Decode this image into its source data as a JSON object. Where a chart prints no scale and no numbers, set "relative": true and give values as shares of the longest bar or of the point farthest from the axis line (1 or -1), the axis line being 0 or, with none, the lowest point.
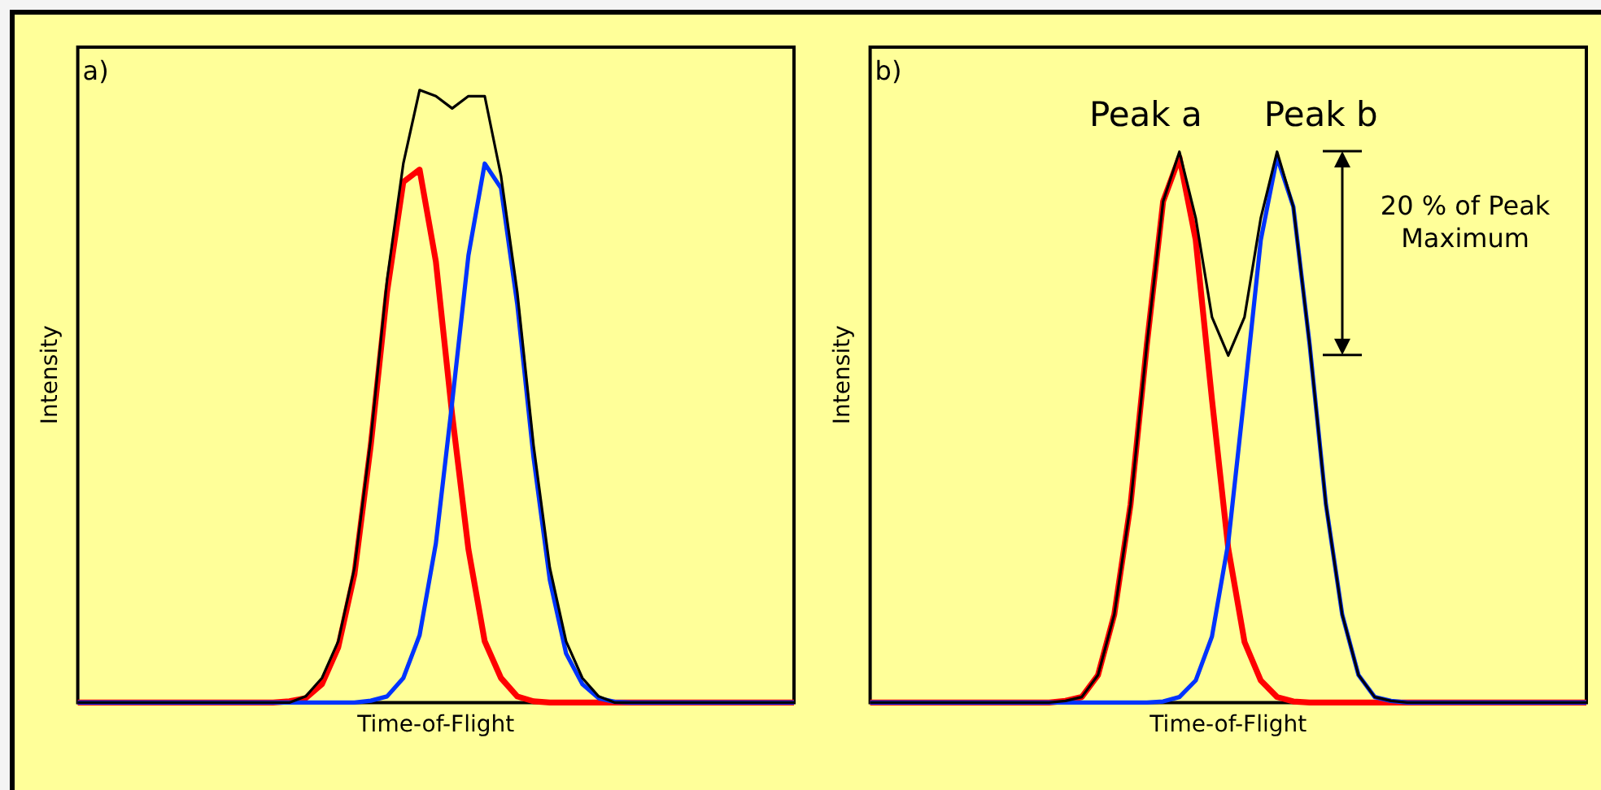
{
  "chart_data": [
    {
      "type": "line",
      "title": "a)",
      "xlabel": "Time-of-Flight",
      "ylabel": "Intensity",
      "relative": true,
      "categories": [
        null,
        null,
        null,
        null,
        null,
        null,
        null,
        null,
        null,
        null,
        null,
        null,
        null,
        null,
        null,
        null,
        null,
        null,
        null,
        null,
        null,
        null,
        null,
        null,
        null,
        null,
        null,
        null,
        null,
        null,
        null,
        null,
        null,
        null,
        null,
        null,
        null,
        null,
        null,
        null,
        null,
        null,
        null,
        null,
        null
      ],
      "series": [
        {
          "color": "#ff0000",
          "values": [
            0,
            0,
            0,
            0,
            0,
            0,
            0,
            0,
            0,
            0,
            0,
            0,
            0,
            0.002,
            0.007,
            0.03,
            0.09,
            0.21,
            0.42,
            0.67,
            0.85,
            0.87,
            0.72,
            0.47,
            0.25,
            0.1,
            0.04,
            0.01,
            0.002,
            0,
            0,
            0,
            0,
            0,
            0,
            0,
            0,
            0,
            0,
            0,
            0,
            0,
            0,
            0,
            0
          ]
        },
        {
          "color": "#0033ff",
          "values": [
            0,
            0,
            0,
            0,
            0,
            0,
            0,
            0,
            0,
            0,
            0,
            0,
            0,
            0,
            0,
            0,
            0,
            0,
            0.003,
            0.01,
            0.04,
            0.11,
            0.26,
            0.49,
            0.73,
            0.88,
            0.84,
            0.65,
            0.4,
            0.2,
            0.08,
            0.03,
            0.007,
            0.001,
            0,
            0,
            0,
            0,
            0,
            0,
            0,
            0,
            0,
            0,
            0
          ]
        },
        {
          "color": "#000000",
          "values": [
            0,
            0,
            0,
            0,
            0,
            0,
            0,
            0,
            0,
            0,
            0,
            0,
            0,
            0,
            0.01,
            0.04,
            0.1,
            0.22,
            0.43,
            0.69,
            0.88,
            1.0,
            0.99,
            0.97,
            0.99,
            0.99,
            0.86,
            0.67,
            0.42,
            0.22,
            0.1,
            0.04,
            0.01,
            0,
            0,
            0,
            0,
            0,
            0,
            0,
            0,
            0,
            0,
            0,
            0
          ]
        }
      ]
    },
    {
      "type": "line",
      "title": "b)",
      "xlabel": "Time-of-Flight",
      "ylabel": "Intensity",
      "relative": true,
      "categories": [
        null,
        null,
        null,
        null,
        null,
        null,
        null,
        null,
        null,
        null,
        null,
        null,
        null,
        null,
        null,
        null,
        null,
        null,
        null,
        null,
        null,
        null,
        null,
        null,
        null,
        null,
        null,
        null,
        null,
        null,
        null,
        null,
        null,
        null,
        null,
        null,
        null,
        null,
        null,
        null,
        null,
        null,
        null,
        null,
        null
      ],
      "annotations": [
        "Peak a",
        "Peak b",
        "20 % of Peak Maximum"
      ],
      "series": [
        {
          "color": "#ff0000",
          "values": [
            0,
            0,
            0,
            0,
            0,
            0,
            0,
            0,
            0,
            0,
            0,
            0,
            0.003,
            0.01,
            0.05,
            0.16,
            0.36,
            0.65,
            0.91,
            0.99,
            0.84,
            0.55,
            0.28,
            0.11,
            0.04,
            0.01,
            0.002,
            0,
            0,
            0,
            0,
            0,
            0,
            0,
            0,
            0,
            0,
            0,
            0,
            0,
            0,
            0,
            0,
            0,
            0
          ]
        },
        {
          "color": "#0033ff",
          "values": [
            0,
            0,
            0,
            0,
            0,
            0,
            0,
            0,
            0,
            0,
            0,
            0,
            0,
            0,
            0,
            0,
            0,
            0,
            0.002,
            0.01,
            0.04,
            0.12,
            0.29,
            0.56,
            0.84,
            0.99,
            0.9,
            0.65,
            0.36,
            0.16,
            0.05,
            0.01,
            0.003,
            0,
            0,
            0,
            0,
            0,
            0,
            0,
            0,
            0,
            0,
            0,
            0
          ]
        },
        {
          "color": "#000000",
          "values": [
            0,
            0,
            0,
            0,
            0,
            0,
            0,
            0,
            0,
            0,
            0,
            0,
            0.003,
            0.01,
            0.05,
            0.16,
            0.36,
            0.65,
            0.91,
            1.0,
            0.88,
            0.7,
            0.63,
            0.7,
            0.88,
            1.0,
            0.9,
            0.65,
            0.36,
            0.16,
            0.05,
            0.01,
            0.003,
            0,
            0,
            0,
            0,
            0,
            0,
            0,
            0,
            0,
            0,
            0,
            0
          ]
        }
      ]
    }
  ]
}
